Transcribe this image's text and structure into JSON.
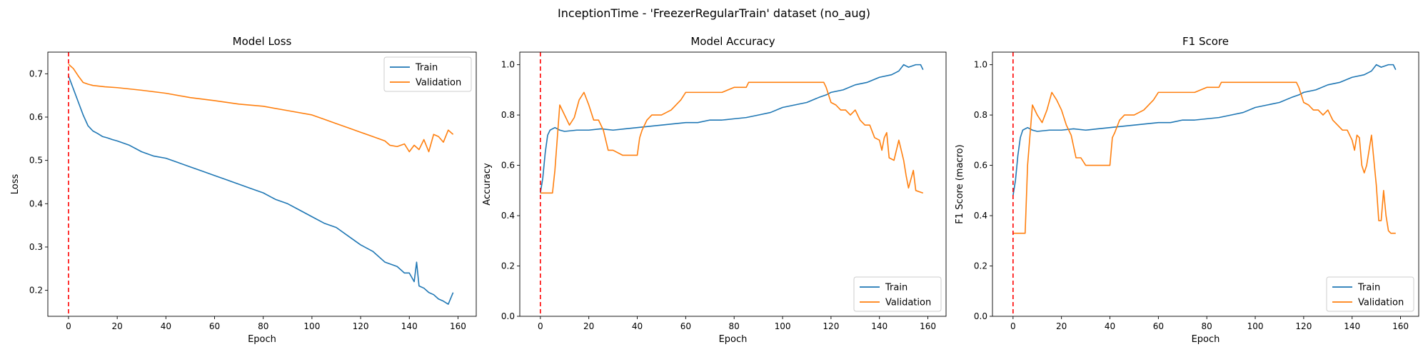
{
  "figure": {
    "suptitle": "InceptionTime - 'FreezerRegularTrain' dataset (no_aug)"
  },
  "colors": {
    "train": "#1f77b4",
    "validation": "#ff7f0e",
    "vline": "#ff0000"
  },
  "chart_data": [
    {
      "type": "line",
      "title": "Model Loss",
      "xlabel": "Epoch",
      "ylabel": "Loss",
      "xlim": [
        -8.5,
        167.5
      ],
      "ylim": [
        0.14,
        0.75
      ],
      "xticks": [
        0,
        20,
        40,
        60,
        80,
        100,
        120,
        140,
        160
      ],
      "yticks": [
        0.2,
        0.3,
        0.4,
        0.5,
        0.6,
        0.7
      ],
      "ytick_decimals": 1,
      "vline_x": 0,
      "legend_loc": "upper right",
      "series": [
        {
          "name": "Train",
          "x": [
            0,
            2,
            4,
            6,
            8,
            10,
            12,
            14,
            16,
            18,
            20,
            25,
            30,
            35,
            40,
            45,
            50,
            55,
            60,
            65,
            70,
            75,
            80,
            85,
            90,
            95,
            100,
            105,
            110,
            115,
            120,
            125,
            130,
            135,
            138,
            140,
            142,
            143,
            144,
            146,
            148,
            150,
            152,
            154,
            156,
            158
          ],
          "values": [
            0.695,
            0.665,
            0.635,
            0.605,
            0.58,
            0.568,
            0.562,
            0.555,
            0.552,
            0.548,
            0.545,
            0.535,
            0.52,
            0.51,
            0.505,
            0.495,
            0.485,
            0.475,
            0.465,
            0.455,
            0.445,
            0.435,
            0.425,
            0.41,
            0.4,
            0.385,
            0.37,
            0.355,
            0.345,
            0.325,
            0.305,
            0.29,
            0.265,
            0.255,
            0.24,
            0.24,
            0.22,
            0.265,
            0.21,
            0.205,
            0.195,
            0.19,
            0.18,
            0.175,
            0.168,
            0.195
          ]
        },
        {
          "name": "Validation",
          "x": [
            0,
            2,
            4,
            6,
            8,
            10,
            15,
            20,
            30,
            40,
            50,
            60,
            70,
            80,
            90,
            100,
            105,
            110,
            115,
            120,
            125,
            130,
            132,
            135,
            138,
            140,
            142,
            144,
            146,
            148,
            150,
            152,
            154,
            156,
            158
          ],
          "values": [
            0.722,
            0.712,
            0.695,
            0.68,
            0.676,
            0.673,
            0.67,
            0.668,
            0.662,
            0.655,
            0.645,
            0.638,
            0.63,
            0.625,
            0.615,
            0.605,
            0.595,
            0.585,
            0.575,
            0.565,
            0.555,
            0.545,
            0.535,
            0.532,
            0.538,
            0.52,
            0.535,
            0.525,
            0.548,
            0.52,
            0.56,
            0.555,
            0.542,
            0.57,
            0.56
          ]
        }
      ]
    },
    {
      "type": "line",
      "title": "Model Accuracy",
      "xlabel": "Epoch",
      "ylabel": "Accuracy",
      "xlim": [
        -8.5,
        167.5
      ],
      "ylim": [
        0.0,
        1.05
      ],
      "xticks": [
        0,
        20,
        40,
        60,
        80,
        100,
        120,
        140,
        160
      ],
      "yticks": [
        0.0,
        0.2,
        0.4,
        0.6,
        0.8,
        1.0
      ],
      "ytick_decimals": 1,
      "vline_x": 0,
      "legend_loc": "lower right",
      "series": [
        {
          "name": "Train",
          "x": [
            0,
            1,
            2,
            3,
            4,
            6,
            8,
            10,
            15,
            20,
            25,
            30,
            35,
            40,
            45,
            50,
            55,
            60,
            65,
            70,
            75,
            80,
            85,
            90,
            95,
            100,
            105,
            110,
            115,
            118,
            120,
            125,
            130,
            135,
            140,
            145,
            148,
            150,
            152,
            155,
            157,
            158
          ],
          "values": [
            0.49,
            0.55,
            0.65,
            0.72,
            0.74,
            0.75,
            0.74,
            0.735,
            0.74,
            0.74,
            0.745,
            0.74,
            0.745,
            0.75,
            0.755,
            0.76,
            0.765,
            0.77,
            0.77,
            0.78,
            0.78,
            0.785,
            0.79,
            0.8,
            0.81,
            0.83,
            0.84,
            0.85,
            0.87,
            0.88,
            0.89,
            0.9,
            0.92,
            0.93,
            0.95,
            0.96,
            0.975,
            1.0,
            0.99,
            1.0,
            1.0,
            0.98
          ]
        },
        {
          "name": "Validation",
          "x": [
            0,
            1,
            3,
            4,
            5,
            6,
            8,
            10,
            12,
            14,
            16,
            18,
            20,
            22,
            24,
            26,
            28,
            30,
            34,
            38,
            40,
            41,
            42,
            44,
            46,
            50,
            54,
            58,
            60,
            62,
            70,
            75,
            80,
            85,
            86,
            90,
            100,
            110,
            117,
            118,
            119,
            120,
            122,
            124,
            126,
            128,
            130,
            132,
            134,
            136,
            138,
            140,
            141,
            142,
            143,
            144,
            146,
            148,
            150,
            151,
            152,
            154,
            155,
            158
          ],
          "values": [
            0.49,
            0.49,
            0.49,
            0.49,
            0.49,
            0.58,
            0.84,
            0.8,
            0.76,
            0.79,
            0.86,
            0.89,
            0.84,
            0.78,
            0.78,
            0.74,
            0.66,
            0.66,
            0.64,
            0.64,
            0.64,
            0.71,
            0.74,
            0.78,
            0.8,
            0.8,
            0.82,
            0.86,
            0.89,
            0.89,
            0.89,
            0.89,
            0.91,
            0.91,
            0.93,
            0.93,
            0.93,
            0.93,
            0.93,
            0.91,
            0.88,
            0.85,
            0.84,
            0.82,
            0.82,
            0.8,
            0.82,
            0.78,
            0.76,
            0.76,
            0.71,
            0.7,
            0.66,
            0.71,
            0.73,
            0.63,
            0.62,
            0.7,
            0.62,
            0.56,
            0.51,
            0.58,
            0.5,
            0.49
          ]
        }
      ]
    },
    {
      "type": "line",
      "title": "F1 Score",
      "xlabel": "Epoch",
      "ylabel": "F1 Score (macro)",
      "xlim": [
        -8.5,
        167.5
      ],
      "ylim": [
        0.0,
        1.05
      ],
      "xticks": [
        0,
        20,
        40,
        60,
        80,
        100,
        120,
        140,
        160
      ],
      "yticks": [
        0.0,
        0.2,
        0.4,
        0.6,
        0.8,
        1.0
      ],
      "ytick_decimals": 1,
      "vline_x": 0,
      "legend_loc": "lower right",
      "series": [
        {
          "name": "Train",
          "x": [
            0,
            1,
            2,
            3,
            4,
            6,
            8,
            10,
            15,
            20,
            25,
            30,
            35,
            40,
            45,
            50,
            55,
            60,
            65,
            70,
            75,
            80,
            85,
            90,
            95,
            100,
            105,
            110,
            115,
            118,
            120,
            125,
            130,
            135,
            140,
            145,
            148,
            150,
            152,
            155,
            157,
            158
          ],
          "values": [
            0.48,
            0.54,
            0.64,
            0.71,
            0.74,
            0.75,
            0.74,
            0.735,
            0.74,
            0.74,
            0.745,
            0.74,
            0.745,
            0.75,
            0.755,
            0.76,
            0.765,
            0.77,
            0.77,
            0.78,
            0.78,
            0.785,
            0.79,
            0.8,
            0.81,
            0.83,
            0.84,
            0.85,
            0.87,
            0.88,
            0.89,
            0.9,
            0.92,
            0.93,
            0.95,
            0.96,
            0.975,
            1.0,
            0.99,
            1.0,
            1.0,
            0.98
          ]
        },
        {
          "name": "Validation",
          "x": [
            0,
            1,
            3,
            4,
            5,
            6,
            8,
            10,
            12,
            14,
            16,
            18,
            20,
            22,
            24,
            26,
            28,
            30,
            34,
            38,
            40,
            41,
            42,
            44,
            46,
            50,
            54,
            58,
            60,
            62,
            70,
            75,
            80,
            85,
            86,
            90,
            100,
            110,
            117,
            118,
            119,
            120,
            122,
            124,
            126,
            128,
            130,
            132,
            134,
            136,
            138,
            140,
            141,
            142,
            143,
            144,
            145,
            146,
            148,
            149,
            150,
            151,
            152,
            153,
            154,
            155,
            156,
            158
          ],
          "values": [
            0.33,
            0.33,
            0.33,
            0.33,
            0.33,
            0.6,
            0.84,
            0.8,
            0.77,
            0.82,
            0.89,
            0.86,
            0.82,
            0.76,
            0.72,
            0.63,
            0.63,
            0.6,
            0.6,
            0.6,
            0.6,
            0.71,
            0.73,
            0.78,
            0.8,
            0.8,
            0.82,
            0.86,
            0.89,
            0.89,
            0.89,
            0.89,
            0.91,
            0.91,
            0.93,
            0.93,
            0.93,
            0.93,
            0.93,
            0.91,
            0.88,
            0.85,
            0.84,
            0.82,
            0.82,
            0.8,
            0.82,
            0.78,
            0.76,
            0.74,
            0.74,
            0.7,
            0.66,
            0.72,
            0.71,
            0.6,
            0.57,
            0.6,
            0.72,
            0.62,
            0.52,
            0.38,
            0.38,
            0.5,
            0.4,
            0.34,
            0.33,
            0.33
          ]
        }
      ]
    }
  ]
}
